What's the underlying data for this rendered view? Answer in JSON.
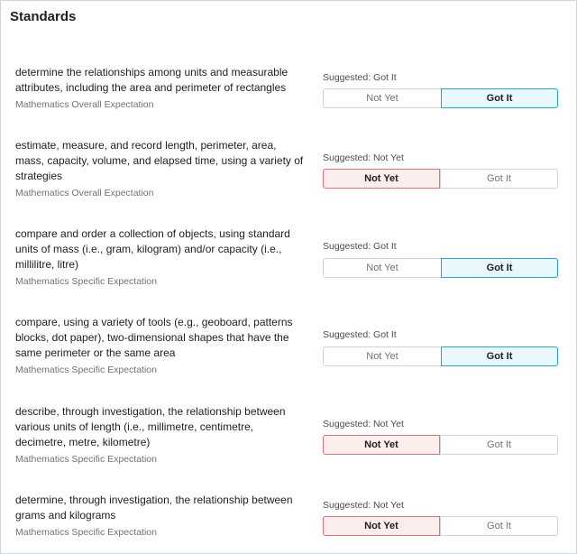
{
  "panel": {
    "title": "Standards"
  },
  "items": [
    {
      "text": "determine the relationships among units and measurable attributes, including the area and perimeter of rectangles",
      "category": "Mathematics Overall Expectation",
      "suggested": "Suggested: Got It",
      "not_yet_label": "Not Yet",
      "got_it_label": "Got It",
      "selected": "got_it"
    },
    {
      "text": "estimate, measure, and record length, perimeter, area, mass, capacity, volume, and elapsed time, using a variety of strategies",
      "category": "Mathematics Overall Expectation",
      "suggested": "Suggested: Not Yet",
      "not_yet_label": "Not Yet",
      "got_it_label": "Got It",
      "selected": "not_yet"
    },
    {
      "text": "compare and order a collection of objects, using standard units of mass (i.e., gram, kilogram) and/or capacity (i.e., millilitre, litre)",
      "category": "Mathematics Specific Expectation",
      "suggested": "Suggested: Got It",
      "not_yet_label": "Not Yet",
      "got_it_label": "Got It",
      "selected": "got_it"
    },
    {
      "text": "compare, using a variety of tools (e.g., geoboard, patterns blocks, dot paper), two-dimensional shapes that have the same perimeter or the same area",
      "category": "Mathematics Specific Expectation",
      "suggested": "Suggested: Got It",
      "not_yet_label": "Not Yet",
      "got_it_label": "Got It",
      "selected": "got_it"
    },
    {
      "text": "describe, through investigation, the relationship between various units of length (i.e., millimetre, centimetre, decimetre, metre, kilometre)",
      "category": "Mathematics Specific Expectation",
      "suggested": "Suggested: Not Yet",
      "not_yet_label": "Not Yet",
      "got_it_label": "Got It",
      "selected": "not_yet"
    },
    {
      "text": "determine, through investigation, the relationship between grams and kilograms",
      "category": "Mathematics Specific Expectation",
      "suggested": "Suggested: Not Yet",
      "not_yet_label": "Not Yet",
      "got_it_label": "Got It",
      "selected": "not_yet"
    }
  ]
}
